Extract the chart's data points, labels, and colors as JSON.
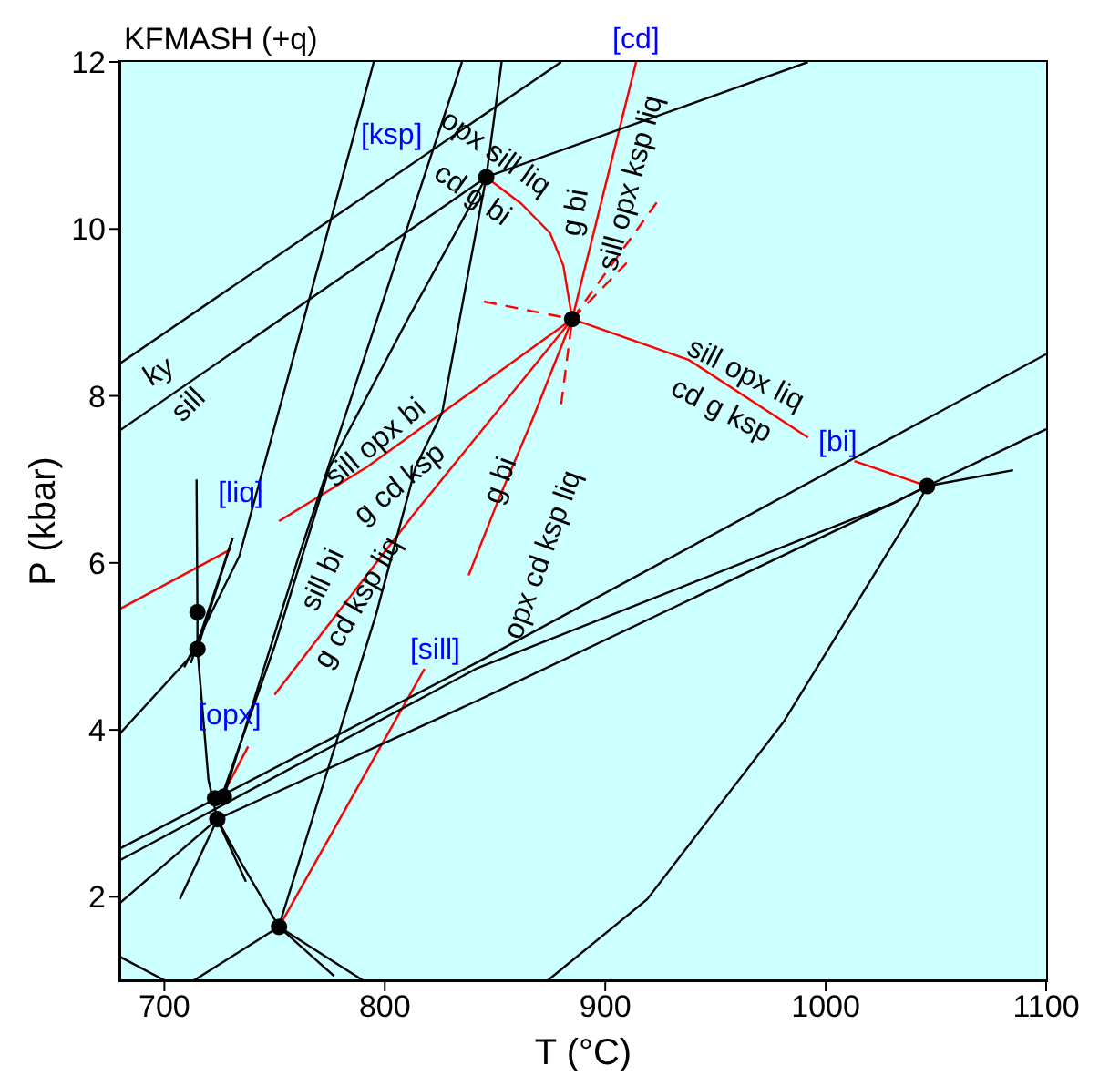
{
  "chart_data": {
    "type": "line",
    "title": "KFMASH (+q)",
    "xlabel": "T (°C)",
    "ylabel": "P (kbar)",
    "xlim": [
      680,
      1100
    ],
    "ylim": [
      1,
      12
    ],
    "xticks": [
      700,
      800,
      900,
      1000,
      1100
    ],
    "yticks": [
      2,
      4,
      6,
      8,
      10,
      12
    ],
    "marker": "none",
    "line_style": "solid",
    "series": [
      {
        "color": "#ff0000",
        "x": [
          885,
          914
        ],
        "values": [
          8.92,
          12
        ]
      },
      {
        "color": "#ff0000",
        "x": [
          846,
          862,
          875,
          881,
          885
        ],
        "values": [
          10.62,
          10.3,
          9.95,
          9.56,
          8.92
        ]
      },
      {
        "color": "#ff0000",
        "x": [
          885,
          938,
          992
        ],
        "values": [
          8.92,
          8.43,
          7.5
        ]
      },
      {
        "color": "#ff0000",
        "x": [
          1013,
          1046
        ],
        "values": [
          7.22,
          6.92
        ]
      },
      {
        "color": "#ff0000",
        "x": [
          680,
          730
        ],
        "values": [
          5.45,
          6.16
        ]
      },
      {
        "color": "#ff0000",
        "x": [
          752,
          792,
          885
        ],
        "values": [
          6.5,
          7.15,
          8.92
        ]
      },
      {
        "color": "#ff0000",
        "x": [
          727,
          738
        ],
        "values": [
          3.25,
          3.8
        ]
      },
      {
        "color": "#ff0000",
        "x": [
          750,
          813,
          885
        ],
        "values": [
          4.42,
          6.58,
          8.92
        ]
      },
      {
        "color": "#ff0000",
        "x": [
          752,
          800,
          818
        ],
        "values": [
          1.64,
          3.89,
          4.73
        ]
      },
      {
        "color": "#ff0000",
        "x": [
          838,
          851,
          867,
          885
        ],
        "values": [
          5.85,
          6.72,
          7.72,
          8.92
        ]
      },
      {
        "color": "#ff0000",
        "line_style": "dashed",
        "x": [
          845,
          885
        ],
        "values": [
          9.13,
          8.92
        ]
      },
      {
        "color": "#ff0000",
        "line_style": "dashed",
        "x": [
          880,
          885
        ],
        "values": [
          7.9,
          8.92
        ]
      },
      {
        "color": "#ff0000",
        "line_style": "dashed",
        "x": [
          885,
          924
        ],
        "values": [
          8.92,
          10.34
        ]
      },
      {
        "color": "#ff0000",
        "line_style": "dashed",
        "x": [
          885,
          910
        ],
        "values": [
          8.92,
          9.6
        ]
      },
      {
        "color": "#000000",
        "x": [
          680,
          880
        ],
        "values": [
          8.39,
          12
        ]
      },
      {
        "color": "#000000",
        "x": [
          680,
          846,
          992
        ],
        "values": [
          7.59,
          10.62,
          12
        ]
      },
      {
        "color": "#000000",
        "x": [
          795,
          734,
          709
        ],
        "values": [
          12,
          6.08,
          4.75
        ]
      },
      {
        "color": "#000000",
        "x": [
          835,
          761,
          727
        ],
        "values": [
          12,
          6.08,
          3.2
        ]
      },
      {
        "color": "#000000",
        "x": [
          853,
          846,
          826,
          814,
          796,
          775,
          752
        ],
        "values": [
          12,
          10.62,
          7.8,
          7.15,
          5.38,
          3.6,
          1.65
        ]
      },
      {
        "color": "#000000",
        "x": [
          846,
          810,
          775,
          750,
          726
        ],
        "values": [
          10.62,
          8.9,
          7.15,
          5.0,
          3.2
        ]
      },
      {
        "color": "#000000",
        "x": [
          714.6,
          715,
          715,
          720,
          724,
          735,
          752,
          777
        ],
        "values": [
          7.0,
          5.41,
          4.97,
          3.4,
          2.93,
          2.4,
          1.64,
          1.05
        ]
      },
      {
        "color": "#000000",
        "x": [
          731,
          712
        ],
        "values": [
          6.3,
          4.8
        ]
      },
      {
        "color": "#000000",
        "x": [
          680,
          715,
          731
        ],
        "values": [
          3.96,
          4.97,
          6.3
        ]
      },
      {
        "color": "#000000",
        "x": [
          680,
          842,
          1100
        ],
        "values": [
          2.58,
          4.81,
          8.5
        ]
      },
      {
        "color": "#000000",
        "x": [
          680,
          842,
          1031,
          1046
        ],
        "values": [
          2.44,
          4.74,
          6.72,
          6.92
        ]
      },
      {
        "color": "#000000",
        "x": [
          680,
          724,
          842,
          1031,
          1046
        ],
        "values": [
          1.93,
          2.93,
          4.35,
          6.72,
          6.92
        ]
      },
      {
        "color": "#000000",
        "x": [
          1046,
          1100
        ],
        "values": [
          6.92,
          7.6
        ]
      },
      {
        "color": "#000000",
        "x": [
          1046,
          1085
        ],
        "values": [
          6.92,
          7.11
        ]
      },
      {
        "color": "#000000",
        "x": [
          1046,
          1042,
          981,
          919,
          874
        ],
        "values": [
          6.92,
          6.72,
          4.1,
          1.97,
          1.0
        ]
      },
      {
        "color": "#000000",
        "x": [
          707,
          724
        ],
        "values": [
          1.97,
          2.93
        ]
      },
      {
        "color": "#000000",
        "x": [
          724,
          737
        ],
        "values": [
          2.93,
          2.18
        ]
      },
      {
        "color": "#000000",
        "x": [
          752,
          790
        ],
        "values": [
          1.64,
          1.0
        ]
      },
      {
        "color": "#000000",
        "x": [
          752,
          713.5
        ],
        "values": [
          1.64,
          1.0
        ]
      },
      {
        "color": "#000000",
        "x": [
          680,
          700
        ],
        "values": [
          1.28,
          1.0
        ]
      },
      {
        "type": "scatter",
        "color": "#000000",
        "marker": "circle",
        "x": [
          846,
          885,
          1046,
          752,
          723,
          724,
          715,
          715,
          727
        ],
        "values": [
          10.62,
          8.92,
          6.92,
          1.64,
          3.18,
          2.93,
          5.41,
          4.97,
          3.2
        ]
      }
    ],
    "annotations": [
      "[cd]",
      "[ksp]",
      "opx sill liq",
      "cd g bi",
      "g bi",
      "sill opx ksp liq",
      "sill opx liq",
      "cd g ksp",
      "[bi]",
      "ky",
      "sill",
      "sill opx bi",
      "g cd ksp",
      "g bi",
      "opx cd ksp liq",
      "[liq]",
      "sill bi",
      "g cd ksp liq",
      "[opx]",
      "[sill]"
    ]
  }
}
